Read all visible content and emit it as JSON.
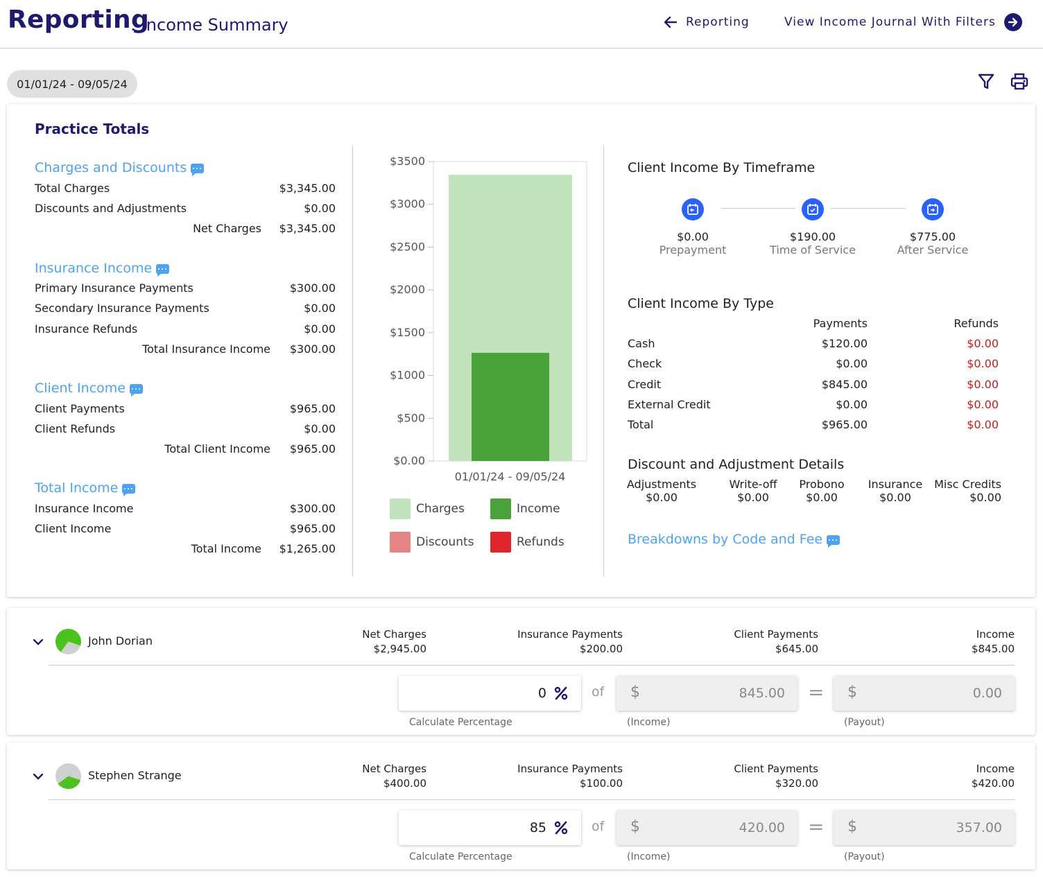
{
  "header": {
    "title": "Reporting",
    "subtitle": ": Income Summary",
    "back_label": "Reporting",
    "journal_label": "View Income Journal With Filters"
  },
  "filters": {
    "date_range": "01/01/24 - 09/05/24"
  },
  "practice_totals": {
    "title": "Practice Totals",
    "charges": {
      "heading": "Charges and Discounts",
      "rows": [
        {
          "label": "Total Charges",
          "value": "$3,345.00"
        },
        {
          "label": "Discounts and Adjustments",
          "value": "$0.00"
        }
      ],
      "total": {
        "label": "Net Charges",
        "value": "$3,345.00"
      }
    },
    "insurance": {
      "heading": "Insurance Income",
      "rows": [
        {
          "label": "Primary Insurance Payments",
          "value": "$300.00"
        },
        {
          "label": "Secondary Insurance Payments",
          "value": "$0.00"
        },
        {
          "label": "Insurance Refunds",
          "value": "$0.00"
        }
      ],
      "total": {
        "label": "Total Insurance Income",
        "value": "$300.00"
      }
    },
    "client": {
      "heading": "Client Income",
      "rows": [
        {
          "label": "Client Payments",
          "value": "$965.00"
        },
        {
          "label": "Client Refunds",
          "value": "$0.00"
        }
      ],
      "total": {
        "label": "Total Client Income",
        "value": "$965.00"
      }
    },
    "total_income": {
      "heading": "Total Income",
      "rows": [
        {
          "label": "Insurance Income",
          "value": "$300.00"
        },
        {
          "label": "Client Income",
          "value": "$965.00"
        }
      ],
      "total": {
        "label": "Total Income",
        "value": "$1,265.00"
      }
    }
  },
  "chart_data": {
    "type": "bar",
    "categories": [
      "01/01/24 - 09/05/24"
    ],
    "series": [
      {
        "name": "Charges",
        "values": [
          3345
        ],
        "color": "#c2e3be"
      },
      {
        "name": "Income",
        "values": [
          1265
        ],
        "color": "#4aa23a"
      },
      {
        "name": "Discounts",
        "values": [
          0
        ],
        "color": "#e38585"
      },
      {
        "name": "Refunds",
        "values": [
          0
        ],
        "color": "#e0262c"
      }
    ],
    "yticks": [
      "$0.00",
      "$500",
      "$1000",
      "$1500",
      "$2000",
      "$2500",
      "$3000",
      "$3500"
    ],
    "ylim": [
      0,
      3500
    ],
    "legend_position": "bottom"
  },
  "timeframe": {
    "title": "Client Income By Timeframe",
    "steps": [
      {
        "value": "$0.00",
        "label": "Prepayment",
        "icon": "calendar-arrow-icon"
      },
      {
        "value": "$190.00",
        "label": "Time of Service",
        "icon": "calendar-check-icon"
      },
      {
        "value": "$775.00",
        "label": "After Service",
        "icon": "calendar-arrow-icon"
      }
    ]
  },
  "by_type": {
    "title": "Client Income By Type",
    "col_payments": "Payments",
    "col_refunds": "Refunds",
    "rows": [
      {
        "label": "Cash",
        "payments": "$120.00",
        "refunds": "$0.00"
      },
      {
        "label": "Check",
        "payments": "$0.00",
        "refunds": "$0.00"
      },
      {
        "label": "Credit",
        "payments": "$845.00",
        "refunds": "$0.00"
      },
      {
        "label": "External Credit",
        "payments": "$0.00",
        "refunds": "$0.00"
      },
      {
        "label": "Total",
        "payments": "$965.00",
        "refunds": "$0.00"
      }
    ]
  },
  "discount_details": {
    "title": "Discount and Adjustment Details",
    "cols": [
      {
        "label": "Adjustments",
        "value": "$0.00"
      },
      {
        "label": "Write-off",
        "value": "$0.00"
      },
      {
        "label": "Probono",
        "value": "$0.00"
      },
      {
        "label": "Insurance",
        "value": "$0.00"
      },
      {
        "label": "Misc Credits",
        "value": "$0.00"
      }
    ]
  },
  "breakdowns_label": "Breakdowns by Code and Fee",
  "providers": [
    {
      "name": "John Dorian",
      "income_share": 0.7,
      "net_charges_label": "Net Charges",
      "net_charges": "$2,945.00",
      "ins_label": "Insurance Payments",
      "ins": "$200.00",
      "client_label": "Client Payments",
      "client": "$645.00",
      "income_label": "Income",
      "income": "$845.00",
      "pct": "0",
      "of": "of",
      "income_input": "845.00",
      "payout": "0.00",
      "cap_pct": "Calculate Percentage",
      "cap_income": "(Income)",
      "cap_payout": "(Payout)",
      "dollar": "$",
      "eq": "="
    },
    {
      "name": "Stephen Strange",
      "income_share": 0.35,
      "net_charges_label": "Net Charges",
      "net_charges": "$400.00",
      "ins_label": "Insurance Payments",
      "ins": "$100.00",
      "client_label": "Client Payments",
      "client": "$320.00",
      "income_label": "Income",
      "income": "$420.00",
      "pct": "85",
      "of": "of",
      "income_input": "420.00",
      "payout": "357.00",
      "cap_pct": "Calculate Percentage",
      "cap_income": "(Income)",
      "cap_payout": "(Payout)",
      "dollar": "$",
      "eq": "="
    }
  ],
  "colors": {
    "brand": "#1e1a6e",
    "link": "#4da3f0",
    "refund": "#c61c1c",
    "accent": "#2962ff"
  }
}
